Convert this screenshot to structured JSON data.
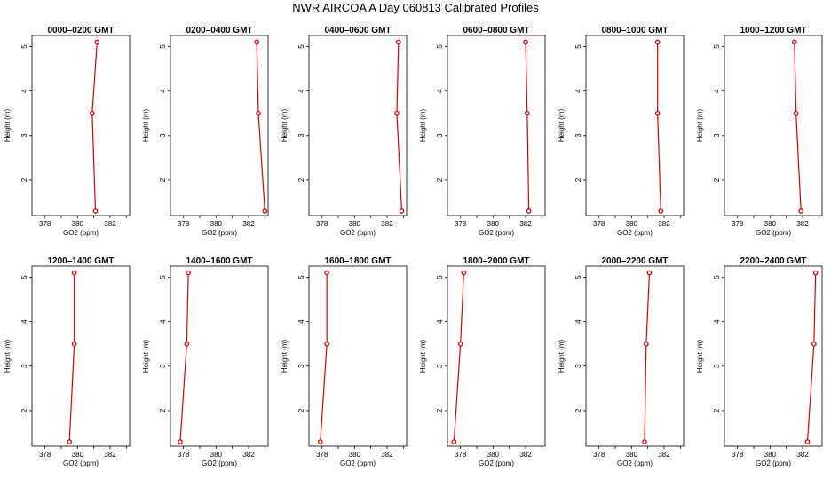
{
  "chart_data": [
    {
      "type": "line",
      "figure_title": "NWR AIRCOA A  Day 060813  Calibrated Profiles",
      "title": "0000–0200 GMT",
      "xlabel": "GO2 (ppm)",
      "ylabel": "Height (m)",
      "xlim": [
        377.2,
        383.2
      ],
      "ylim": [
        1.2,
        5.25
      ],
      "xticks": [
        378,
        380,
        382
      ],
      "yticks": [
        2,
        3,
        4,
        5
      ],
      "line_color": "#e00000",
      "marker": "open-circle",
      "x": [
        381.1,
        380.9,
        381.2
      ],
      "y": [
        1.3,
        3.5,
        5.1
      ]
    },
    {
      "type": "line",
      "title": "0200–0400 GMT",
      "xlabel": "GO2 (ppm)",
      "ylabel": "Height (m)",
      "xlim": [
        377.2,
        383.2
      ],
      "ylim": [
        1.2,
        5.25
      ],
      "xticks": [
        378,
        380,
        382
      ],
      "yticks": [
        2,
        3,
        4,
        5
      ],
      "line_color": "#e00000",
      "marker": "open-circle",
      "x": [
        383.0,
        382.6,
        382.5
      ],
      "y": [
        1.3,
        3.5,
        5.1
      ]
    },
    {
      "type": "line",
      "title": "0400–0600 GMT",
      "xlabel": "GO2 (ppm)",
      "ylabel": "Height (m)",
      "xlim": [
        377.2,
        383.2
      ],
      "ylim": [
        1.2,
        5.25
      ],
      "xticks": [
        378,
        380,
        382
      ],
      "yticks": [
        2,
        3,
        4,
        5
      ],
      "line_color": "#e00000",
      "marker": "open-circle",
      "x": [
        382.9,
        382.6,
        382.7
      ],
      "y": [
        1.3,
        3.5,
        5.1
      ]
    },
    {
      "type": "line",
      "title": "0600–0800 GMT",
      "xlabel": "GO2 (ppm)",
      "ylabel": "Height (m)",
      "xlim": [
        377.2,
        383.2
      ],
      "ylim": [
        1.2,
        5.25
      ],
      "xticks": [
        378,
        380,
        382
      ],
      "yticks": [
        2,
        3,
        4,
        5
      ],
      "line_color": "#e00000",
      "marker": "open-circle",
      "x": [
        382.2,
        382.1,
        382.0
      ],
      "y": [
        1.3,
        3.5,
        5.1
      ]
    },
    {
      "type": "line",
      "title": "0800–1000 GMT",
      "xlabel": "GO2 (ppm)",
      "ylabel": "Height (m)",
      "xlim": [
        377.2,
        383.2
      ],
      "ylim": [
        1.2,
        5.25
      ],
      "xticks": [
        378,
        380,
        382
      ],
      "yticks": [
        2,
        3,
        4,
        5
      ],
      "line_color": "#e00000",
      "marker": "open-circle",
      "x": [
        381.8,
        381.6,
        381.6
      ],
      "y": [
        1.3,
        3.5,
        5.1
      ]
    },
    {
      "type": "line",
      "title": "1000–1200 GMT",
      "xlabel": "GO2 (ppm)",
      "ylabel": "Height (m)",
      "xlim": [
        377.2,
        383.2
      ],
      "ylim": [
        1.2,
        5.25
      ],
      "xticks": [
        378,
        380,
        382
      ],
      "yticks": [
        2,
        3,
        4,
        5
      ],
      "line_color": "#e00000",
      "marker": "open-circle",
      "x": [
        381.9,
        381.6,
        381.5
      ],
      "y": [
        1.3,
        3.5,
        5.1
      ]
    },
    {
      "type": "line",
      "title": "1200–1400 GMT",
      "xlabel": "GO2 (ppm)",
      "ylabel": "Height (m)",
      "xlim": [
        377.2,
        383.2
      ],
      "ylim": [
        1.2,
        5.25
      ],
      "xticks": [
        378,
        380,
        382
      ],
      "yticks": [
        2,
        3,
        4,
        5
      ],
      "line_color": "#e00000",
      "marker": "open-circle",
      "x": [
        379.5,
        379.8,
        379.8
      ],
      "y": [
        1.3,
        3.5,
        5.1
      ]
    },
    {
      "type": "line",
      "title": "1400–1600 GMT",
      "xlabel": "GO2 (ppm)",
      "ylabel": "Height (m)",
      "xlim": [
        377.2,
        383.2
      ],
      "ylim": [
        1.2,
        5.25
      ],
      "xticks": [
        378,
        380,
        382
      ],
      "yticks": [
        2,
        3,
        4,
        5
      ],
      "line_color": "#e00000",
      "marker": "open-circle",
      "x": [
        377.8,
        378.2,
        378.3
      ],
      "y": [
        1.3,
        3.5,
        5.1
      ]
    },
    {
      "type": "line",
      "title": "1600–1800 GMT",
      "xlabel": "GO2 (ppm)",
      "ylabel": "Height (m)",
      "xlim": [
        377.2,
        383.2
      ],
      "ylim": [
        1.2,
        5.25
      ],
      "xticks": [
        378,
        380,
        382
      ],
      "yticks": [
        2,
        3,
        4,
        5
      ],
      "line_color": "#e00000",
      "marker": "open-circle",
      "x": [
        377.9,
        378.3,
        378.3
      ],
      "y": [
        1.3,
        3.5,
        5.1
      ]
    },
    {
      "type": "line",
      "title": "1800–2000 GMT",
      "xlabel": "GO2 (ppm)",
      "ylabel": "Height (m)",
      "xlim": [
        377.2,
        383.2
      ],
      "ylim": [
        1.2,
        5.25
      ],
      "xticks": [
        378,
        380,
        382
      ],
      "yticks": [
        2,
        3,
        4,
        5
      ],
      "line_color": "#e00000",
      "marker": "open-circle",
      "x": [
        377.6,
        378.0,
        378.2
      ],
      "y": [
        1.3,
        3.5,
        5.1
      ]
    },
    {
      "type": "line",
      "title": "2000–2200 GMT",
      "xlabel": "GO2 (ppm)",
      "ylabel": "Height (m)",
      "xlim": [
        377.2,
        383.2
      ],
      "ylim": [
        1.2,
        5.25
      ],
      "xticks": [
        378,
        380,
        382
      ],
      "yticks": [
        2,
        3,
        4,
        5
      ],
      "line_color": "#e00000",
      "marker": "open-circle",
      "x": [
        380.8,
        380.9,
        381.1
      ],
      "y": [
        1.3,
        3.5,
        5.1
      ]
    },
    {
      "type": "line",
      "title": "2200–2400 GMT",
      "xlabel": "GO2 (ppm)",
      "ylabel": "Height (m)",
      "xlim": [
        377.2,
        383.2
      ],
      "ylim": [
        1.2,
        5.25
      ],
      "xticks": [
        378,
        380,
        382
      ],
      "yticks": [
        2,
        3,
        4,
        5
      ],
      "line_color": "#e00000",
      "marker": "open-circle",
      "x": [
        382.3,
        382.7,
        382.8
      ],
      "y": [
        1.3,
        3.5,
        5.1
      ]
    }
  ]
}
